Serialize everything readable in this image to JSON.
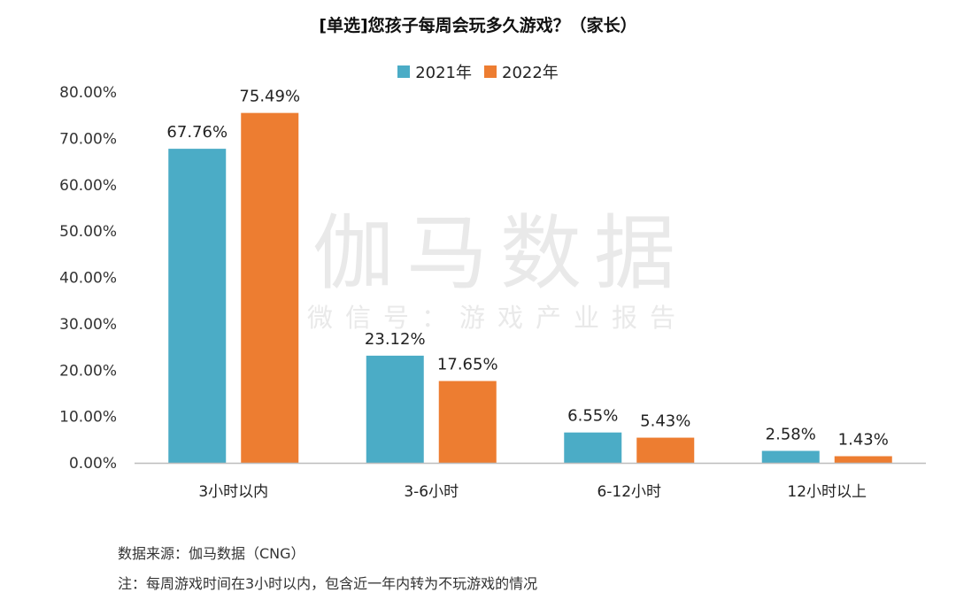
{
  "chart_data": {
    "type": "bar",
    "title": "[单选]您孩子每周会玩多久游戏？（家长）",
    "categories": [
      "3小时以内",
      "3-6小时",
      "6-12小时",
      "12小时以上"
    ],
    "series": [
      {
        "name": "2021年",
        "color": "#4bacc6",
        "values": [
          67.76,
          23.12,
          6.55,
          2.58
        ]
      },
      {
        "name": "2022年",
        "color": "#ed7d31",
        "values": [
          75.49,
          17.65,
          5.43,
          1.43
        ]
      }
    ],
    "ylim": [
      0,
      80
    ],
    "yticks": [
      "0.00%",
      "10.00%",
      "20.00%",
      "30.00%",
      "40.00%",
      "50.00%",
      "60.00%",
      "70.00%",
      "80.00%"
    ],
    "xlabel": "",
    "ylabel": "",
    "legend_position": "top-center",
    "grid": false
  },
  "watermark": {
    "main": "伽马数据",
    "sub": "微信号：游戏产业报告"
  },
  "footer": {
    "source": "数据来源：伽马数据（CNG）",
    "note": "注：每周游戏时间在3小时以内，包含近一年内转为不玩游戏的情况"
  }
}
